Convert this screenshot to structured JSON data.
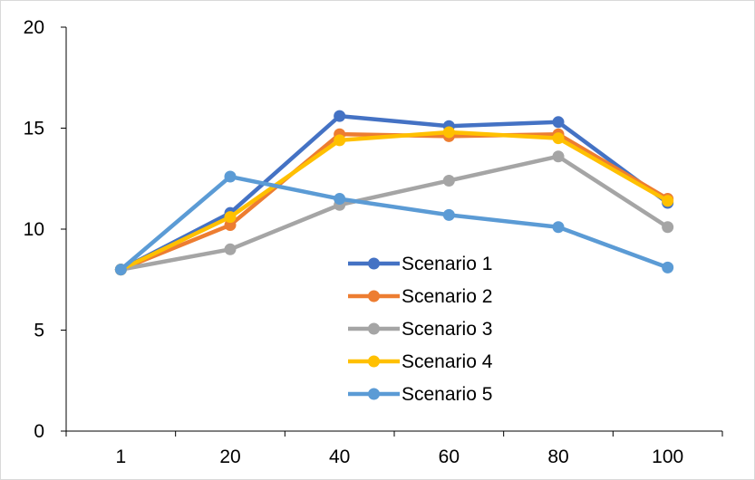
{
  "chart_data": {
    "type": "line",
    "title": "",
    "xlabel": "",
    "ylabel": "",
    "categories": [
      "1",
      "20",
      "40",
      "60",
      "80",
      "100"
    ],
    "ylim": [
      0,
      20
    ],
    "yticks": [
      0,
      5,
      10,
      15,
      20
    ],
    "grid": false,
    "legend_position": "center",
    "series": [
      {
        "name": "Scenario 1",
        "color": "#4472C4",
        "values": [
          8.0,
          10.8,
          15.6,
          15.1,
          15.3,
          11.3
        ]
      },
      {
        "name": "Scenario 2",
        "color": "#ED7D31",
        "values": [
          8.0,
          10.2,
          14.7,
          14.6,
          14.7,
          11.5
        ]
      },
      {
        "name": "Scenario 3",
        "color": "#A5A5A5",
        "values": [
          8.0,
          9.0,
          11.2,
          12.4,
          13.6,
          10.1
        ]
      },
      {
        "name": "Scenario 4",
        "color": "#FFC000",
        "values": [
          8.0,
          10.6,
          14.4,
          14.8,
          14.5,
          11.4
        ]
      },
      {
        "name": "Scenario 5",
        "color": "#5B9BD5",
        "values": [
          8.0,
          12.6,
          11.5,
          10.7,
          10.1,
          8.1
        ]
      }
    ]
  }
}
